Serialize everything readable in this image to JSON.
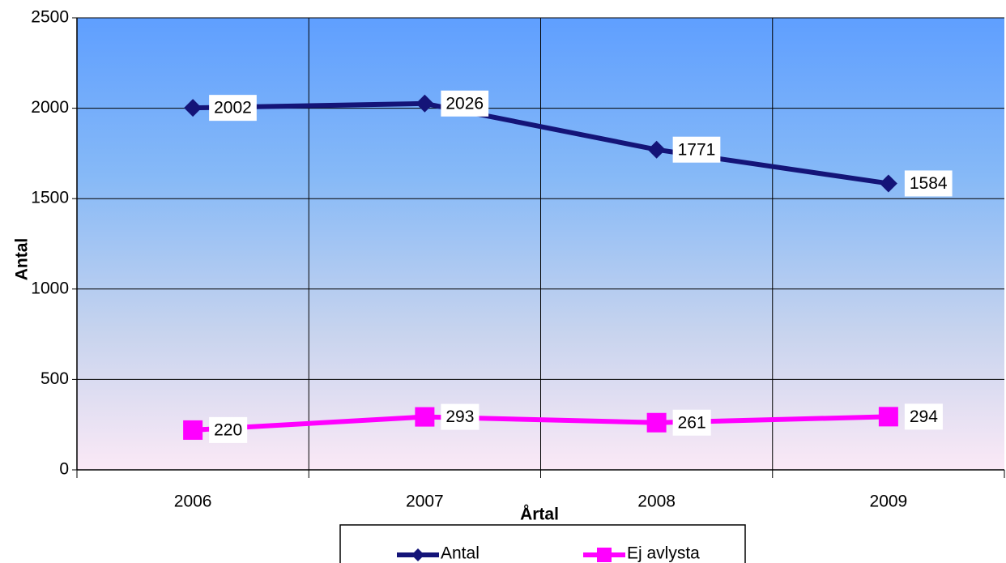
{
  "chart_data": {
    "type": "line",
    "categories": [
      "2006",
      "2007",
      "2008",
      "2009"
    ],
    "series": [
      {
        "name": "Antal",
        "color": "#141478",
        "marker": "diamond",
        "values": [
          2002,
          2026,
          1771,
          1584
        ]
      },
      {
        "name": "Ej avlysta",
        "color": "#ff00ff",
        "marker": "square",
        "values": [
          220,
          293,
          261,
          294
        ]
      }
    ],
    "xlabel": "Årtal",
    "ylabel": "Antal",
    "ylim": [
      0,
      2500
    ],
    "yticks": [
      0,
      500,
      1000,
      1500,
      2000,
      2500
    ],
    "grid": true,
    "legend": "bottom",
    "data_labels": true
  }
}
